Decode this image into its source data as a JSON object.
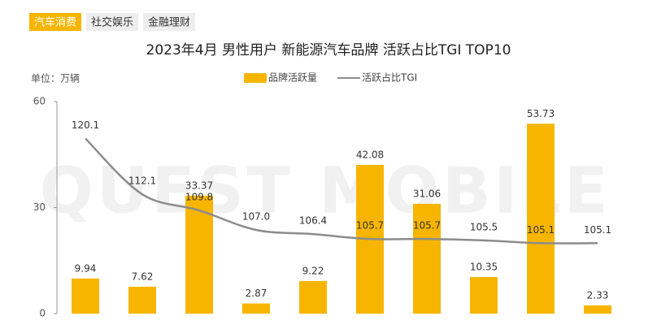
{
  "tabs": [
    "汽车消费",
    "社交娱乐",
    "金融理财"
  ],
  "active_tab": 0,
  "watermark": "QUEST MOBILE",
  "chart_data": {
    "type": "bar",
    "title": "2023年4月 男性用户 新能源汽车品牌 活跃占比TGI TOP10",
    "unit": "单位：万辆",
    "series": [
      {
        "name": "品牌活跃量",
        "type": "bar",
        "color": "#f7b500",
        "values": [
          9.94,
          7.62,
          33.37,
          2.87,
          9.22,
          42.08,
          31.06,
          10.35,
          53.73,
          2.33
        ]
      },
      {
        "name": "活跃占比TGI",
        "type": "line",
        "axis": "y2",
        "color": "#8c8c8c",
        "values": [
          120.1,
          112.1,
          109.8,
          107.0,
          106.4,
          105.7,
          105.7,
          105.5,
          105.1,
          105.1
        ],
        "value_labels": [
          "120.1",
          "112.1",
          "109.8",
          "107.0",
          "106.4",
          "105.7",
          "105.7",
          "105.5",
          "105.1",
          "105.1"
        ]
      }
    ],
    "ylim": [
      0,
      60
    ],
    "yticks": [
      0,
      30,
      60
    ],
    "y2lim": [
      95,
      125.4
    ]
  }
}
